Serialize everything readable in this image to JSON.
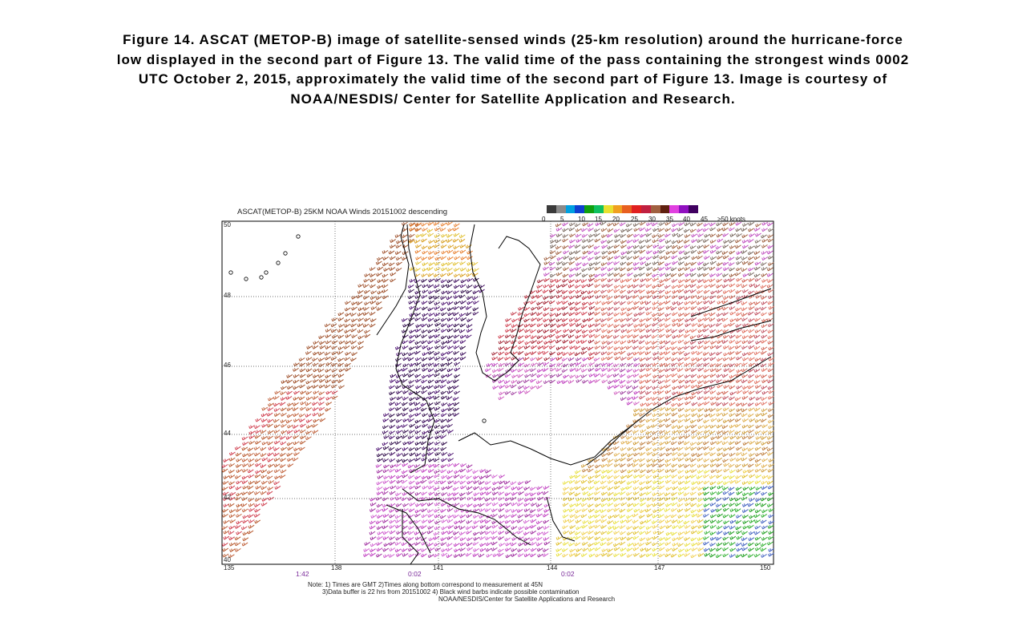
{
  "caption": {
    "line1": "Figure 14.  ASCAT (METOP-B) image of satellite-sensed winds (25-km resolution) around the hurricane-force",
    "line2": "low displayed in the second part of Figure 13.  The valid time of the pass containing the strongest winds 0002",
    "line3": "UTC October 2, 2015, approximately the valid time of the second part of Figure 13.  Image is courtesy of",
    "line4": "NOAA/NESDIS/ Center for Satellite Application and Research."
  },
  "map": {
    "title": "ASCAT(METOP-B) 25KM NOAA Winds 20151002 descending",
    "colorbar": {
      "labels": [
        "0",
        "5",
        "10",
        "15",
        "20",
        "25",
        "30",
        "35",
        "40",
        "45",
        ">50 knots"
      ],
      "colors": [
        "#3a3a3a",
        "#8a8a8a",
        "#00a0e0",
        "#1040d0",
        "#10a010",
        "#10c060",
        "#e8e030",
        "#f0a020",
        "#e86020",
        "#e02020",
        "#c02040",
        "#a06040",
        "#602010",
        "#e040e0",
        "#9010c0",
        "#400060"
      ]
    },
    "lat_labels": [
      "50",
      "48",
      "46",
      "44",
      "42",
      "40"
    ],
    "lon_labels": [
      "135",
      "138",
      "141",
      "144",
      "147",
      "150"
    ],
    "time_labels": [
      "1:42",
      "0:02",
      "0:02"
    ],
    "notes": {
      "line1": "Note: 1) Times are GMT 2)Times along bottom correspond to measurement at 45N",
      "line2": "3)Data buffer is 22 hrs from 20151002 4) Black wind barbs indicate possible contamination",
      "line3": "NOAA/NESDIS/Center for Satellite Applications and Research"
    }
  }
}
